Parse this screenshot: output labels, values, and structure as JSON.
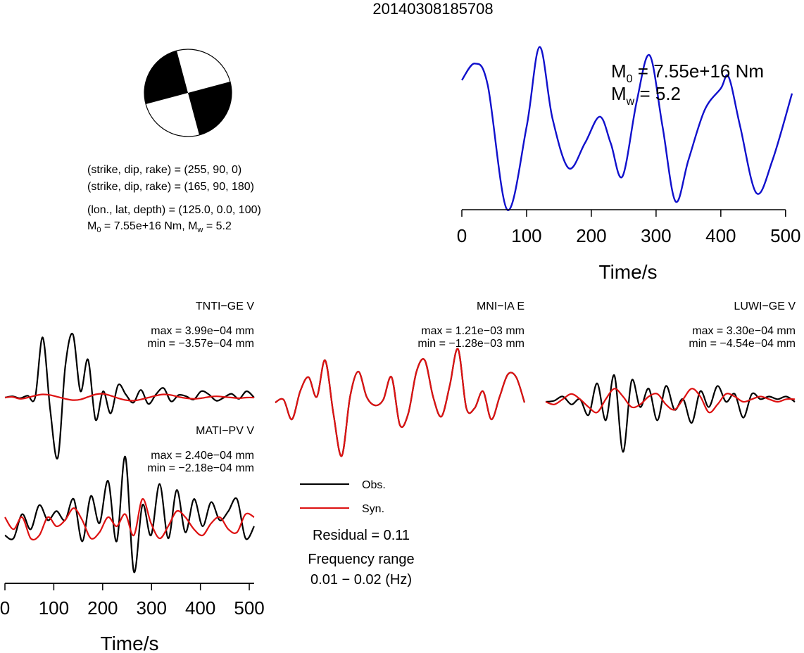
{
  "title": "20140308185708",
  "mechanism": {
    "planes": [
      "(strike, dip, rake) = (255, 90, 0)",
      "(strike, dip, rake) = (165, 90, 180)"
    ],
    "location": "(lon., lat, depth) = (125.0, 0.0, 100)",
    "moment": {
      "m0_label": "M",
      "m0_sub": "0",
      "m0_value": " = 7.55e+16 Nm, ",
      "mw_label": "M",
      "mw_sub": "w",
      "mw_value": " = 5.2"
    }
  },
  "stf": {
    "m0_label": "M",
    "m0_sub": "0",
    "m0_value": " = 7.55e+16 Nm",
    "mw_label": "M",
    "mw_sub": "w",
    "mw_value": " = 5.2"
  },
  "legend": {
    "obs": "Obs.",
    "syn": "Syn."
  },
  "residual": "Residual = 0.11",
  "freq_title": "Frequency range",
  "freq_value": "0.01 − 0.02 (Hz)",
  "colors": {
    "obs": "#000000",
    "syn": "#dd1111",
    "stf": "#1010cc"
  },
  "chart_data": [
    {
      "type": "line",
      "xlabel": "Time/s",
      "xlim": [
        0,
        510
      ],
      "xticks": [
        "0",
        "100",
        "200",
        "300",
        "400",
        "500"
      ],
      "series": [
        {
          "x": [
            0,
            20,
            40,
            70,
            100,
            120,
            140,
            165,
            190,
            213,
            230,
            248,
            270,
            290,
            310,
            330,
            350,
            375,
            400,
            412,
            430,
            455,
            480,
            510
          ],
          "values": [
            0.78,
            0.88,
            0.75,
            0.0,
            0.5,
            0.98,
            0.55,
            0.25,
            0.4,
            0.56,
            0.4,
            0.2,
            0.65,
            0.93,
            0.5,
            0.05,
            0.3,
            0.6,
            0.73,
            0.8,
            0.5,
            0.1,
            0.3,
            0.7
          ]
        }
      ]
    },
    {
      "type": "line",
      "station": "TNTI−GE V",
      "max": "max = 3.99e−04 mm",
      "min": "min = −3.57e−04 mm",
      "series": [
        {
          "name": "Obs.",
          "values": [
            0.0,
            0.02,
            -0.01,
            0.03,
            0.0,
            0.95,
            -0.2,
            -0.95,
            0.5,
            1.0,
            0.1,
            0.6,
            -0.35,
            0.1,
            -0.25,
            0.2,
            0.05,
            -0.08,
            0.12,
            -0.1,
            0.05,
            0.15,
            -0.06,
            0.04,
            0.02,
            -0.03,
            0.1,
            0.05,
            -0.05,
            0.0,
            0.06,
            -0.02,
            0.1,
            0.0
          ]
        },
        {
          "name": "Syn.",
          "values": [
            0.0,
            0.01,
            -0.02,
            0.0,
            0.03,
            0.05,
            0.04,
            0.01,
            -0.02,
            -0.04,
            -0.03,
            0.01,
            0.05,
            0.06,
            0.03,
            -0.01,
            -0.04,
            -0.05,
            -0.03,
            0.0,
            0.03,
            0.05,
            0.04,
            0.01,
            -0.01,
            -0.02,
            -0.01,
            0.01,
            0.02,
            0.01,
            0.0,
            -0.01,
            0.0,
            0.0
          ]
        }
      ]
    },
    {
      "type": "line",
      "station": "MNI−IA E",
      "max": "max = 1.21e−03 mm",
      "min": "min = −1.28e−03 mm",
      "series": [
        {
          "name": "Obs.",
          "values": [
            0.0,
            0.05,
            -0.3,
            0.2,
            0.45,
            0.1,
            0.75,
            -0.2,
            -0.95,
            0.1,
            0.55,
            0.1,
            -0.05,
            0.05,
            0.45,
            -0.4,
            -0.2,
            0.55,
            0.75,
            0.1,
            -0.25,
            0.3,
            0.95,
            -0.1,
            -0.1,
            0.2,
            -0.3,
            0.1,
            0.5,
            0.45,
            0.0
          ]
        },
        {
          "name": "Syn.",
          "values": [
            0.0,
            0.05,
            -0.3,
            0.2,
            0.45,
            0.1,
            0.75,
            -0.2,
            -0.95,
            0.1,
            0.55,
            0.1,
            -0.05,
            0.05,
            0.45,
            -0.4,
            -0.2,
            0.55,
            0.75,
            0.1,
            -0.25,
            0.3,
            0.95,
            -0.1,
            -0.1,
            0.2,
            -0.3,
            0.1,
            0.5,
            0.45,
            0.0
          ]
        }
      ]
    },
    {
      "type": "line",
      "station": "LUWI−GE V",
      "max": "max = 3.30e−04 mm",
      "min": "min = −4.54e−04 mm",
      "series": [
        {
          "name": "Obs.",
          "values": [
            0.0,
            0.02,
            0.1,
            -0.05,
            0.05,
            -0.25,
            0.35,
            -0.35,
            0.5,
            -0.95,
            0.4,
            -0.1,
            0.25,
            -0.35,
            0.3,
            -0.15,
            0.05,
            -0.4,
            0.2,
            -0.1,
            0.3,
            0.0,
            0.15,
            -0.3,
            0.15,
            0.05,
            0.1,
            0.05,
            0.1,
            0.0
          ]
        },
        {
          "name": "Syn.",
          "values": [
            0.0,
            -0.05,
            0.05,
            0.15,
            0.05,
            -0.1,
            -0.2,
            0.05,
            0.25,
            0.1,
            -0.1,
            -0.05,
            0.1,
            0.15,
            -0.05,
            -0.15,
            0.05,
            0.25,
            0.1,
            -0.2,
            -0.05,
            0.15,
            0.1,
            0.0,
            0.05,
            0.1,
            0.05,
            0.0,
            0.05,
            0.05
          ]
        }
      ]
    },
    {
      "type": "line",
      "station": "MATI−PV V",
      "max": "max = 2.40e−04 mm",
      "min": "min = −2.18e−04 mm",
      "xlabel": "Time/s",
      "xlim": [
        0,
        510
      ],
      "xticks": [
        "0",
        "100",
        "200",
        "300",
        "400",
        "500"
      ],
      "series": [
        {
          "name": "Obs.",
          "values": [
            -0.3,
            -0.35,
            0.05,
            -0.2,
            0.2,
            -0.05,
            0.1,
            -0.05,
            0.3,
            -0.4,
            0.35,
            -0.1,
            0.6,
            -0.4,
            1.0,
            -0.9,
            0.2,
            -0.3,
            0.55,
            -0.35,
            0.45,
            -0.25,
            0.3,
            -0.15,
            0.25,
            -0.05,
            0.1,
            0.3,
            -0.35,
            -0.15
          ]
        },
        {
          "name": "Syn.",
          "values": [
            0.0,
            -0.2,
            0.0,
            -0.35,
            -0.3,
            0.0,
            -0.15,
            -0.05,
            0.15,
            -0.05,
            -0.35,
            -0.25,
            0.0,
            -0.15,
            0.05,
            -0.3,
            0.3,
            -0.1,
            -0.35,
            -0.15,
            0.1,
            0.0,
            -0.2,
            -0.3,
            -0.1,
            0.0,
            -0.2,
            -0.25,
            0.05,
            0.0
          ]
        }
      ]
    }
  ]
}
